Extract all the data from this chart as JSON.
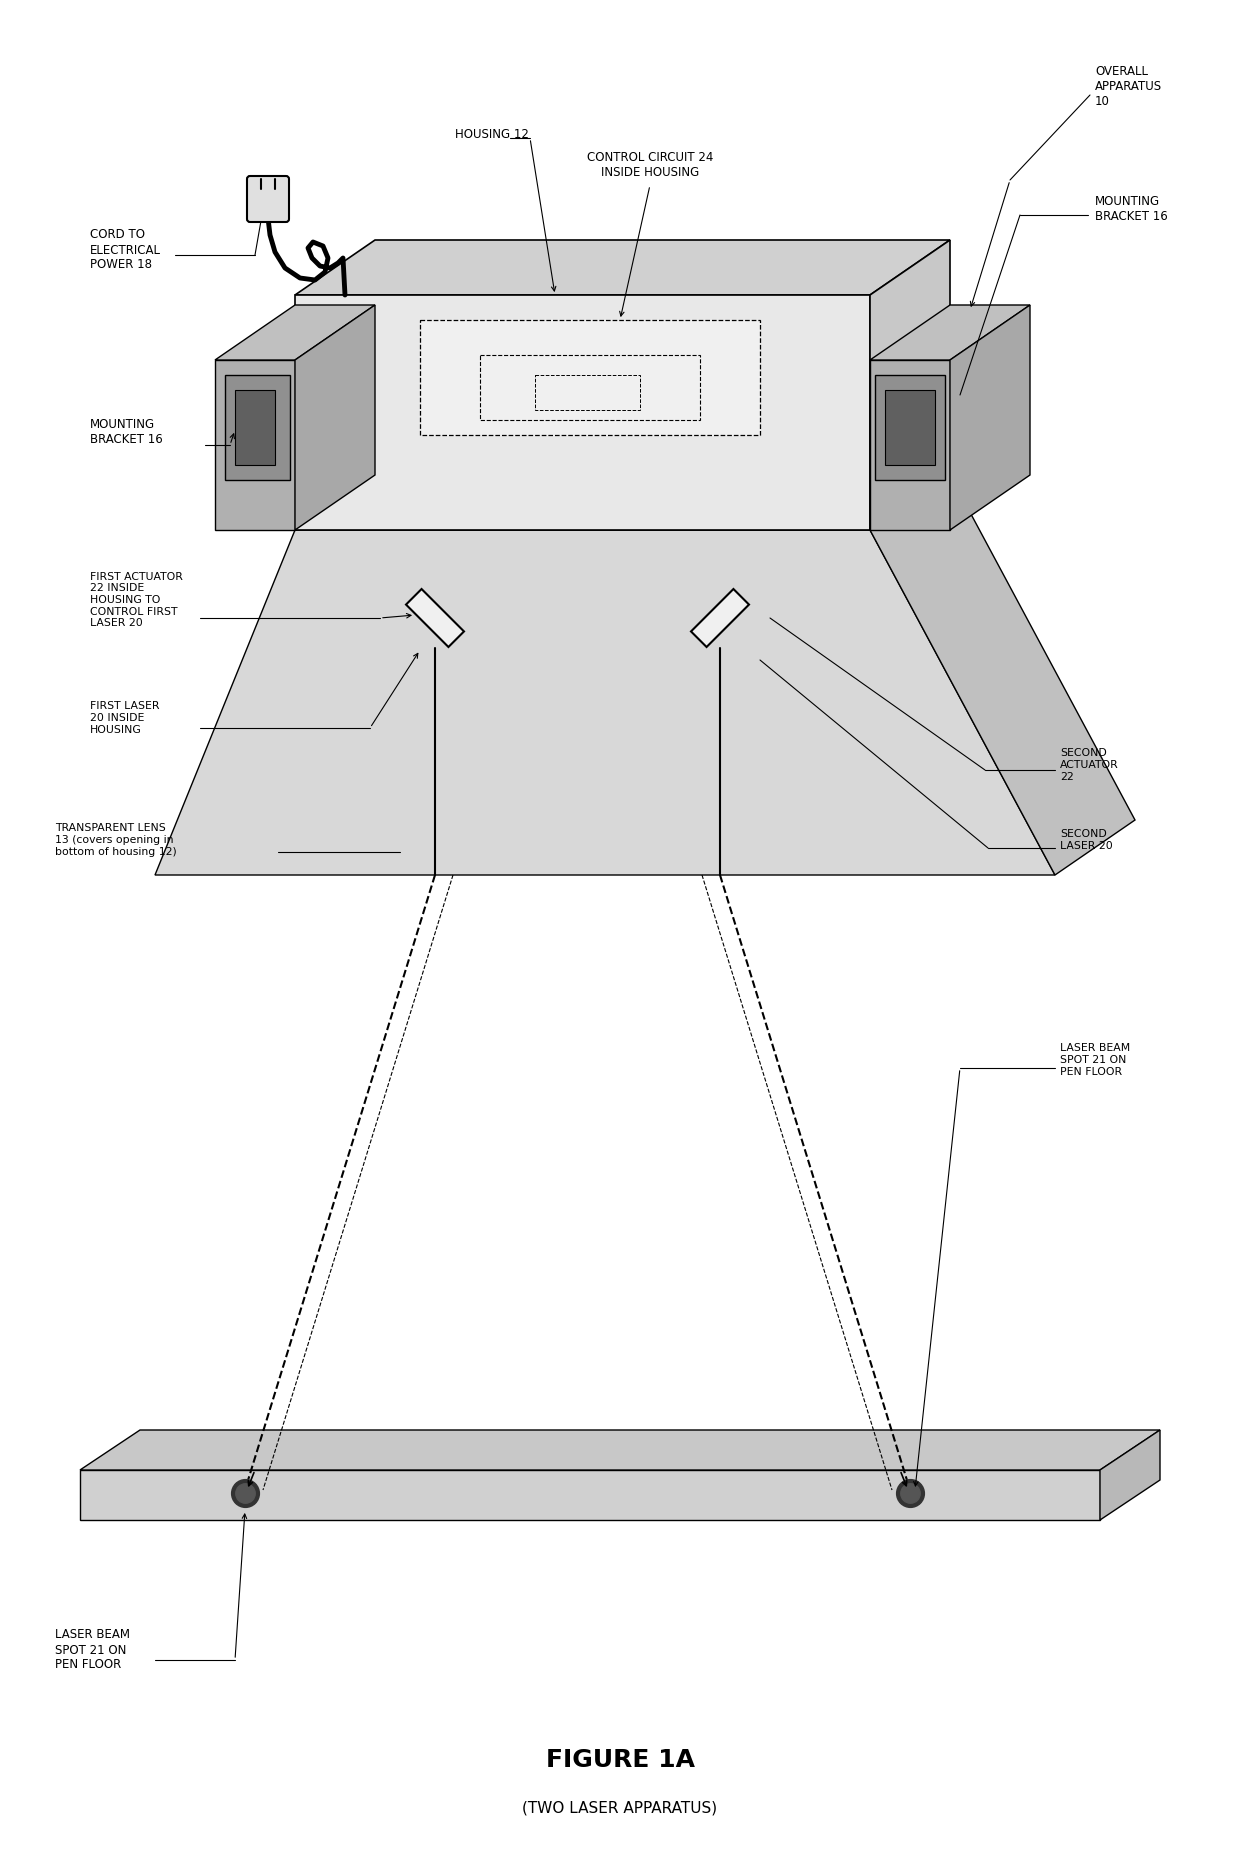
{
  "title": "FIGURE 1A",
  "subtitle": "(TWO LASER APPARATUS)",
  "bg_color": "#ffffff",
  "fig_width": 12.4,
  "fig_height": 18.72,
  "labels": {
    "overall_apparatus": "OVERALL\nAPPARATUS\n10",
    "mounting_bracket_r": "MOUNTING\nBRACKET 16",
    "housing": "HOUSING 12",
    "control_circuit": "CONTROL CIRCUIT 24\nINSIDE HOUSING",
    "cord": "CORD TO\nELECTRICAL\nPOWER 18",
    "mounting_bracket_l": "MOUNTING\nBRACKET 16",
    "first_actuator": "FIRST ACTUATOR\n22 INSIDE\nHOUSING TO\nCONTROL FIRST\nLASER 20",
    "first_laser": "FIRST LASER\n20 INSIDE\nHOUSING",
    "transparent_lens": "TRANSPARENT LENS\n13 (covers opening in\nbottom of housing 12)",
    "second_actuator": "SECOND\nACTUATOR\n22",
    "second_laser": "SECOND\nLASER 20",
    "laser_beam_r": "LASER BEAM\nSPOT 21 ON\nPEN FLOOR",
    "laser_beam_l": "LASER BEAM\nSPOT 21 ON\nPEN FLOOR"
  },
  "colors": {
    "housing_face": "#e8e8e8",
    "housing_top": "#d0d0d0",
    "housing_side": "#c8c8c8",
    "platform_face": "#d8d8d8",
    "platform_top": "#cccccc",
    "platform_side": "#c0c0c0",
    "bracket_light": "#b0b0b0",
    "bracket_mid": "#909090",
    "bracket_dark": "#606060",
    "floor_face": "#d0d0d0",
    "floor_side": "#b8b8b8",
    "mirror_white": "#f0f0f0",
    "spot_dark": "#333333",
    "spot_mid": "#555555"
  }
}
